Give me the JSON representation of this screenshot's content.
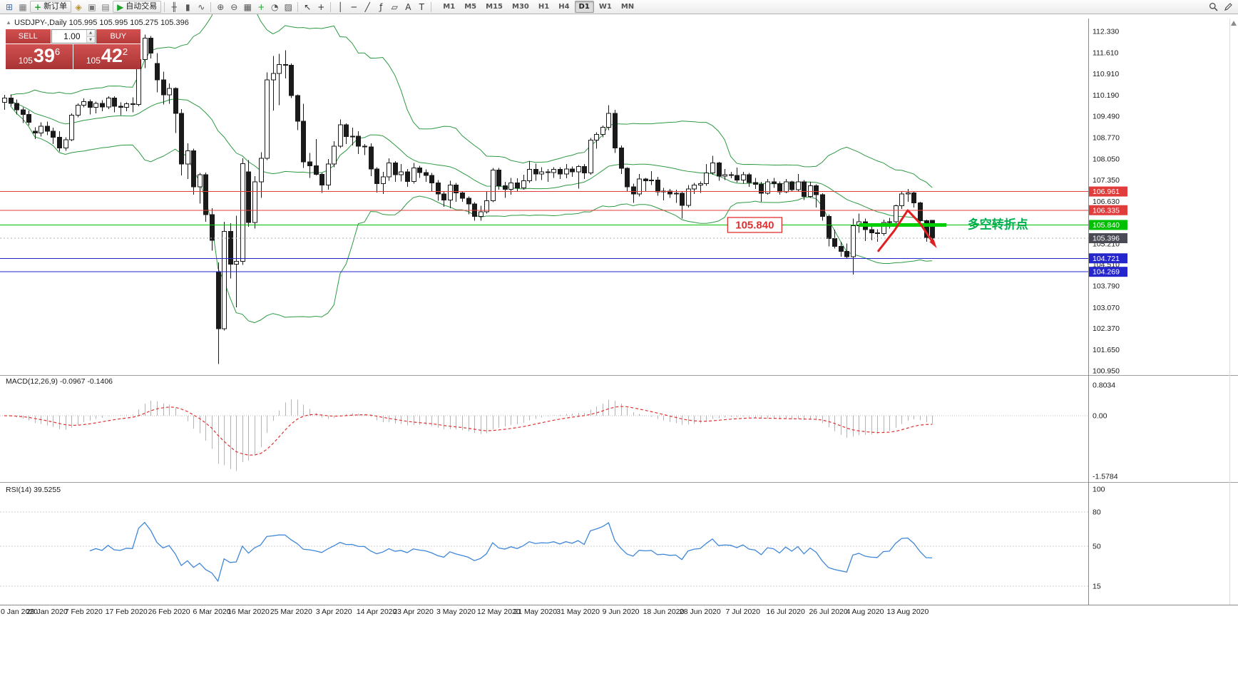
{
  "toolbar": {
    "items": [
      {
        "name": "new-chart-icon",
        "glyph": "⊞",
        "color": "#4a6fa5"
      },
      {
        "name": "profiles-icon",
        "glyph": "▦",
        "color": "#777777"
      },
      {
        "name": "new-order-button",
        "glyph": "+",
        "color": "#1fa32e",
        "label": "新订单"
      },
      {
        "name": "mql5-community-icon",
        "glyph": "◈",
        "color": "#b8912f"
      },
      {
        "name": "market-watch-icon",
        "glyph": "▣",
        "color": "#777777"
      },
      {
        "name": "navigator-icon",
        "glyph": "▤",
        "color": "#777777"
      },
      {
        "name": "autotrading-button",
        "glyph": "▶",
        "color": "#1fa32e",
        "label": "自动交易"
      },
      {
        "sep": true
      },
      {
        "name": "bar-chart-icon",
        "glyph": "╫",
        "color": "#555555"
      },
      {
        "name": "candlestick-chart-icon",
        "glyph": "▮",
        "color": "#555555"
      },
      {
        "name": "line-chart-icon",
        "glyph": "∿",
        "color": "#555555"
      },
      {
        "sep": true
      },
      {
        "name": "zoom-in-icon",
        "glyph": "⊕",
        "color": "#555555"
      },
      {
        "name": "zoom-out-icon",
        "glyph": "⊖",
        "color": "#555555"
      },
      {
        "name": "tile-windows-icon",
        "glyph": "▦",
        "color": "#555555"
      },
      {
        "name": "indicators-icon",
        "glyph": "+",
        "color": "#1fa32e"
      },
      {
        "name": "periods-icon",
        "glyph": "◔",
        "color": "#555555"
      },
      {
        "name": "templates-icon",
        "glyph": "▨",
        "color": "#555555"
      },
      {
        "sep": true
      },
      {
        "name": "cursor-icon",
        "glyph": "↖",
        "color": "#333333"
      },
      {
        "name": "crosshair-icon",
        "glyph": "+",
        "color": "#333333"
      },
      {
        "sep": true
      },
      {
        "name": "vertical-line-icon",
        "glyph": "│",
        "color": "#333333"
      },
      {
        "name": "horizontal-line-icon",
        "glyph": "─",
        "color": "#333333"
      },
      {
        "name": "trendline-icon",
        "glyph": "╱",
        "color": "#333333"
      },
      {
        "name": "fibonacci-icon",
        "glyph": "ƒ",
        "color": "#333333"
      },
      {
        "name": "shapes-icon",
        "glyph": "▱",
        "color": "#333333"
      },
      {
        "name": "text-icon",
        "glyph": "A",
        "color": "#333333"
      },
      {
        "name": "text-label-icon",
        "glyph": "T",
        "color": "#333333"
      },
      {
        "sep": true
      }
    ],
    "timeframes": [
      "M1",
      "M5",
      "M15",
      "M30",
      "H1",
      "H4",
      "D1",
      "W1",
      "MN"
    ],
    "active_timeframe": "D1"
  },
  "trade_panel": {
    "sell_label": "SELL",
    "buy_label": "BUY",
    "volume": "1.00",
    "volume_up_glyph": "▲",
    "volume_down_glyph": "▼",
    "sell": {
      "prefix": "105",
      "big": "39",
      "sup": "6"
    },
    "buy": {
      "prefix": "105",
      "big": "42",
      "sup": "2"
    }
  },
  "chart": {
    "shift_marker": "▲",
    "title": "USDJPY-,Daily",
    "ohlc": "105.995 105.995 105.275 105.396",
    "bollinger_color": "#2d9a41",
    "candle_color": "#1a1a1a",
    "hlines": [
      {
        "price": 106.961,
        "color": "#e03c3c"
      },
      {
        "price": 106.335,
        "color": "#e03c3c"
      },
      {
        "price": 105.84,
        "color": "#00c000"
      },
      {
        "price": 104.721,
        "color": "#2525cc"
      },
      {
        "price": 104.269,
        "color": "#2525cc"
      }
    ],
    "current_price": {
      "value": 105.396,
      "line_color": "#b0b0b0"
    },
    "pivot_segment": {
      "from_index": 140,
      "to_index": 154.3,
      "price": 105.84,
      "color": "#00d000",
      "width": 5
    },
    "price_label": {
      "text": "105.840",
      "index": 118.5,
      "price": 105.84,
      "color": "#e03030"
    },
    "cn_annotation": {
      "text": "多空转折点",
      "index": 157.8,
      "price": 105.86,
      "color": "#00b050"
    },
    "arrow": {
      "color": "#e02020",
      "points": [
        [
          143.2,
          104.97
        ],
        [
          145.8,
          105.65
        ],
        [
          148.0,
          106.33
        ],
        [
          150.0,
          105.9
        ],
        [
          152.3,
          105.2
        ]
      ]
    },
    "axis_badges": [
      {
        "text": "106.961",
        "price": 106.961,
        "color": "#e03c3c"
      },
      {
        "text": "106.335",
        "price": 106.335,
        "color": "#e03c3c"
      },
      {
        "text": "105.840",
        "price": 105.84,
        "color": "#00c000"
      },
      {
        "text": "105.396",
        "price": 105.396,
        "color": "#4a4a55"
      },
      {
        "text": "104.721",
        "price": 104.721,
        "color": "#2525cc"
      },
      {
        "text": "104.269",
        "price": 104.269,
        "color": "#2525cc"
      }
    ]
  },
  "macd": {
    "label": "MACD(12,26,9) -0.0967 -0.1406",
    "histogram_color": "#b4b4b4",
    "signal_color": "#e03131",
    "axis": [
      {
        "text": "0.8034",
        "value": 0.8034
      },
      {
        "text": "0.00",
        "value": 0
      },
      {
        "text": "-1.5784",
        "value": -1.5784
      }
    ]
  },
  "rsi": {
    "label": "RSI(14) 39.5255",
    "color": "#3f87d9",
    "levels": [
      {
        "text": "100",
        "value": 100,
        "line": false
      },
      {
        "text": "80",
        "value": 80,
        "line": true
      },
      {
        "text": "50",
        "value": 50,
        "line": true
      },
      {
        "text": "15",
        "value": 15,
        "line": true
      }
    ]
  },
  "chart_data": {
    "type": "candlestick",
    "symbol": "USDJPY-",
    "timeframe": "Daily",
    "current_bar": [
      105.995,
      105.995,
      105.275,
      105.396
    ],
    "y_ticks": [
      "112.330",
      "111.610",
      "110.910",
      "110.190",
      "109.490",
      "108.770",
      "108.050",
      "107.350",
      "106.630",
      "105.910",
      "105.210",
      "104.510",
      "103.790",
      "103.070",
      "102.370",
      "101.650",
      "100.950"
    ],
    "x_labels": [
      "0 Jan 2020",
      "29 Jan 2020",
      "7 Feb 2020",
      "17 Feb 2020",
      "26 Feb 2020",
      "6 Mar 2020",
      "16 Mar 2020",
      "25 Mar 2020",
      "3 Apr 2020",
      "14 Apr 2020",
      "23 Apr 2020",
      "3 May 2020",
      "12 May 2020",
      "21 May 2020",
      "31 May 2020",
      "9 Jun 2020",
      "18 Jun 2020",
      "28 Jun 2020",
      "7 Jul 2020",
      "16 Jul 2020",
      "26 Jul 2020",
      "4 Aug 2020",
      "13 Aug 2020"
    ],
    "h_levels": [
      106.961,
      106.335,
      105.84,
      104.721,
      104.269
    ],
    "indicators": {
      "bollinger": {
        "period": 20,
        "deviation": 2
      },
      "macd": {
        "fast": 12,
        "slow": 26,
        "signal": 9,
        "current": -0.0967,
        "signal_current": -0.1406,
        "max": 0.8034,
        "min": -1.5784
      },
      "rsi": {
        "period": 14,
        "current": 39.5255
      }
    },
    "candles": [
      [
        109.95,
        110.2,
        109.7,
        110.1
      ],
      [
        110.1,
        110.22,
        109.82,
        109.92
      ],
      [
        109.92,
        110.05,
        109.55,
        109.7
      ],
      [
        109.7,
        109.78,
        109.26,
        109.55
      ],
      [
        109.55,
        109.68,
        109.18,
        109.28
      ],
      [
        108.98,
        109.12,
        108.72,
        108.92
      ],
      [
        108.92,
        109.28,
        108.8,
        109.15
      ],
      [
        109.15,
        109.3,
        108.85,
        108.98
      ],
      [
        108.98,
        109.1,
        108.55,
        108.78
      ],
      [
        108.78,
        108.98,
        108.3,
        108.42
      ],
      [
        108.42,
        108.78,
        108.32,
        108.7
      ],
      [
        108.7,
        109.58,
        108.65,
        109.52
      ],
      [
        109.52,
        109.92,
        109.45,
        109.85
      ],
      [
        109.85,
        110.08,
        109.78,
        109.98
      ],
      [
        109.98,
        110.05,
        109.55,
        109.78
      ],
      [
        109.78,
        109.98,
        109.58,
        109.92
      ],
      [
        109.92,
        110.02,
        109.65,
        109.8
      ],
      [
        109.8,
        110.15,
        109.72,
        110.1
      ],
      [
        110.1,
        110.16,
        109.62,
        109.82
      ],
      [
        109.82,
        109.95,
        109.52,
        109.78
      ],
      [
        109.78,
        109.95,
        109.65,
        109.9
      ],
      [
        109.9,
        110.12,
        109.62,
        109.88
      ],
      [
        109.88,
        111.6,
        109.82,
        111.38
      ],
      [
        111.38,
        112.22,
        111.1,
        112.1
      ],
      [
        112.1,
        112.18,
        111.42,
        111.6
      ],
      [
        111.25,
        111.6,
        110.28,
        110.7
      ],
      [
        110.7,
        110.98,
        109.88,
        110.2
      ],
      [
        110.2,
        110.58,
        109.9,
        110.42
      ],
      [
        110.42,
        110.45,
        108.92,
        109.58
      ],
      [
        109.58,
        109.72,
        107.5,
        107.88
      ],
      [
        107.88,
        108.58,
        107.38,
        108.32
      ],
      [
        108.32,
        108.4,
        106.85,
        107.12
      ],
      [
        107.12,
        107.58,
        106.56,
        107.52
      ],
      [
        107.52,
        107.6,
        105.95,
        106.18
      ],
      [
        106.18,
        106.4,
        104.98,
        105.32
      ],
      [
        104.25,
        104.58,
        101.18,
        102.36
      ],
      [
        102.36,
        105.95,
        102.3,
        105.62
      ],
      [
        105.62,
        105.9,
        104.05,
        104.52
      ],
      [
        104.52,
        106.15,
        103.08,
        104.62
      ],
      [
        104.62,
        108.08,
        104.5,
        107.9
      ],
      [
        107.62,
        108.02,
        105.78,
        105.92
      ],
      [
        105.92,
        107.48,
        105.72,
        107.28
      ],
      [
        107.28,
        108.28,
        106.75,
        108.08
      ],
      [
        108.08,
        110.95,
        108.02,
        110.7
      ],
      [
        110.7,
        111.5,
        109.68,
        110.92
      ],
      [
        110.92,
        111.58,
        109.85,
        111.22
      ],
      [
        111.22,
        111.7,
        110.75,
        111.2
      ],
      [
        111.2,
        111.25,
        110.1,
        110.18
      ],
      [
        110.18,
        110.22,
        109.02,
        109.32
      ],
      [
        109.32,
        109.9,
        107.75,
        107.95
      ],
      [
        107.95,
        108.25,
        107.42,
        107.82
      ],
      [
        107.82,
        108.72,
        107.5,
        107.54
      ],
      [
        107.54,
        107.58,
        106.92,
        107.18
      ],
      [
        107.18,
        108.05,
        107.02,
        107.88
      ],
      [
        107.88,
        108.65,
        107.78,
        108.48
      ],
      [
        108.48,
        109.38,
        108.42,
        109.2
      ],
      [
        109.2,
        109.25,
        108.55,
        108.8
      ],
      [
        108.8,
        109.1,
        108.5,
        108.82
      ],
      [
        108.82,
        108.98,
        108.22,
        108.48
      ],
      [
        108.48,
        108.55,
        108.18,
        108.46
      ],
      [
        108.46,
        108.58,
        107.48,
        107.72
      ],
      [
        107.72,
        107.78,
        106.93,
        107.22
      ],
      [
        107.22,
        107.62,
        106.88,
        107.45
      ],
      [
        107.45,
        108.08,
        107.32,
        107.92
      ],
      [
        107.92,
        107.98,
        107.28,
        107.52
      ],
      [
        107.52,
        107.88,
        107.3,
        107.62
      ],
      [
        107.62,
        107.72,
        107.12,
        107.3
      ],
      [
        107.3,
        107.92,
        107.22,
        107.75
      ],
      [
        107.75,
        107.82,
        107.42,
        107.6
      ],
      [
        107.6,
        107.7,
        107.28,
        107.5
      ],
      [
        107.5,
        107.58,
        106.98,
        107.25
      ],
      [
        107.25,
        107.35,
        106.65,
        106.88
      ],
      [
        106.88,
        106.98,
        106.45,
        106.68
      ],
      [
        106.68,
        107.32,
        106.4,
        107.18
      ],
      [
        107.18,
        107.25,
        106.62,
        106.92
      ],
      [
        106.92,
        106.98,
        106.62,
        106.74
      ],
      [
        106.74,
        106.8,
        106.2,
        106.54
      ],
      [
        106.54,
        106.6,
        105.98,
        106.12
      ],
      [
        106.12,
        106.48,
        105.98,
        106.28
      ],
      [
        106.28,
        106.98,
        106.22,
        106.65
      ],
      [
        106.65,
        107.75,
        106.6,
        107.68
      ],
      [
        107.68,
        107.75,
        107.02,
        107.15
      ],
      [
        107.15,
        107.28,
        106.75,
        107.03
      ],
      [
        107.03,
        107.42,
        106.85,
        107.25
      ],
      [
        107.25,
        107.4,
        106.95,
        107.08
      ],
      [
        107.08,
        107.52,
        107.02,
        107.32
      ],
      [
        107.32,
        107.98,
        107.25,
        107.7
      ],
      [
        107.7,
        107.9,
        107.32,
        107.55
      ],
      [
        107.55,
        107.78,
        107.35,
        107.62
      ],
      [
        107.62,
        107.72,
        107.28,
        107.6
      ],
      [
        107.6,
        107.78,
        107.42,
        107.7
      ],
      [
        107.7,
        107.78,
        107.38,
        107.55
      ],
      [
        107.55,
        107.88,
        107.4,
        107.72
      ],
      [
        107.72,
        107.8,
        107.45,
        107.62
      ],
      [
        107.62,
        107.85,
        107.06,
        107.8
      ],
      [
        107.8,
        107.88,
        107.38,
        107.58
      ],
      [
        107.58,
        108.75,
        107.52,
        108.68
      ],
      [
        108.68,
        108.95,
        108.4,
        108.88
      ],
      [
        108.88,
        109.18,
        108.78,
        109.12
      ],
      [
        109.12,
        109.85,
        109.02,
        109.58
      ],
      [
        109.58,
        109.7,
        108.25,
        108.42
      ],
      [
        108.42,
        108.5,
        107.55,
        107.74
      ],
      [
        107.74,
        107.78,
        106.95,
        107.12
      ],
      [
        107.12,
        107.22,
        106.58,
        106.88
      ],
      [
        106.88,
        107.55,
        106.8,
        107.38
      ],
      [
        107.38,
        107.42,
        106.98,
        107.32
      ],
      [
        107.32,
        107.65,
        107.18,
        107.35
      ],
      [
        107.35,
        107.45,
        106.82,
        106.95
      ],
      [
        106.95,
        107.08,
        106.66,
        106.98
      ],
      [
        106.98,
        107.05,
        106.75,
        106.88
      ],
      [
        106.88,
        107.02,
        106.58,
        106.9
      ],
      [
        106.9,
        106.96,
        106.06,
        106.5
      ],
      [
        106.5,
        107.18,
        106.42,
        107.05
      ],
      [
        107.05,
        107.25,
        106.88,
        107.18
      ],
      [
        107.18,
        107.3,
        106.92,
        107.22
      ],
      [
        107.22,
        107.88,
        107.15,
        107.58
      ],
      [
        107.58,
        108.16,
        107.52,
        107.92
      ],
      [
        107.92,
        107.96,
        107.32,
        107.48
      ],
      [
        107.48,
        107.72,
        107.35,
        107.52
      ],
      [
        107.52,
        107.62,
        107.4,
        107.5
      ],
      [
        107.5,
        107.76,
        107.26,
        107.35
      ],
      [
        107.35,
        107.62,
        107.22,
        107.52
      ],
      [
        107.52,
        107.58,
        107.12,
        107.26
      ],
      [
        107.26,
        107.42,
        107.05,
        107.2
      ],
      [
        107.2,
        107.28,
        106.62,
        106.9
      ],
      [
        106.9,
        107.38,
        106.85,
        107.28
      ],
      [
        107.28,
        107.42,
        107.08,
        107.22
      ],
      [
        107.22,
        107.3,
        106.85,
        106.95
      ],
      [
        106.95,
        107.38,
        106.9,
        107.28
      ],
      [
        107.28,
        107.32,
        106.98,
        107.02
      ],
      [
        107.02,
        107.55,
        106.95,
        107.28
      ],
      [
        107.28,
        107.35,
        106.68,
        106.8
      ],
      [
        106.8,
        107.28,
        106.75,
        107.15
      ],
      [
        107.15,
        107.2,
        106.42,
        106.85
      ],
      [
        106.85,
        106.9,
        105.98,
        106.12
      ],
      [
        106.12,
        106.18,
        105.12,
        105.38
      ],
      [
        105.38,
        105.68,
        105.05,
        105.12
      ],
      [
        105.12,
        105.28,
        104.78,
        104.95
      ],
      [
        104.95,
        105.22,
        104.72,
        104.78
      ],
      [
        104.78,
        106.05,
        104.18,
        105.82
      ],
      [
        105.82,
        106.22,
        105.58,
        105.95
      ],
      [
        105.95,
        106.05,
        105.3,
        105.68
      ],
      [
        105.68,
        105.88,
        105.32,
        105.58
      ],
      [
        105.58,
        105.7,
        105.28,
        105.55
      ],
      [
        105.55,
        106.02,
        105.48,
        105.92
      ],
      [
        105.92,
        106.08,
        105.72,
        105.95
      ],
      [
        105.95,
        106.52,
        105.88,
        106.48
      ],
      [
        106.48,
        106.98,
        106.38,
        106.88
      ],
      [
        106.88,
        107.05,
        106.62,
        106.92
      ],
      [
        106.92,
        106.98,
        106.42,
        106.58
      ],
      [
        106.58,
        106.62,
        105.85,
        105.98
      ],
      [
        105.98,
        106.02,
        105.28,
        105.42
      ],
      [
        105.995,
        105.995,
        105.275,
        105.396
      ]
    ]
  }
}
